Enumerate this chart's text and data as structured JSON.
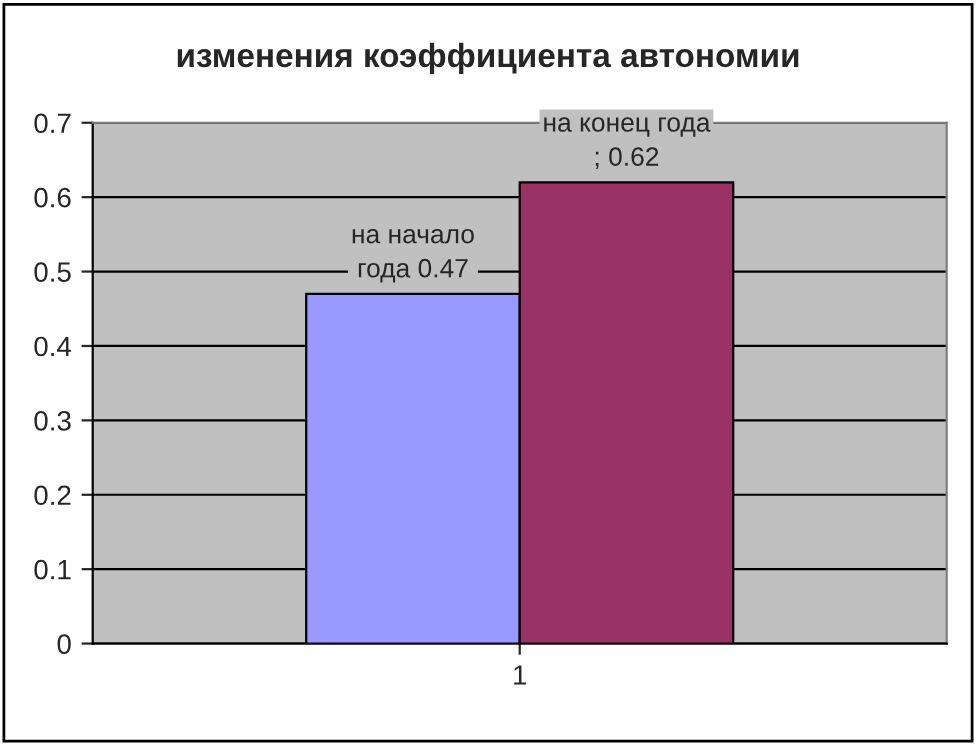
{
  "chart_data": {
    "type": "bar",
    "title": "изменения коэффициента автономии",
    "categories": [
      "1"
    ],
    "series": [
      {
        "color": "#9999ff",
        "values": [
          0.47
        ],
        "value_labels": [
          "на начало\nгода 0.47"
        ]
      },
      {
        "color": "#993366",
        "values": [
          0.62
        ],
        "value_labels": [
          "на конец года\n; 0.62"
        ]
      }
    ],
    "ylim": [
      0,
      0.7
    ],
    "yticks": [
      0,
      0.1,
      0.2,
      0.3,
      0.4,
      0.5,
      0.6,
      0.7
    ],
    "grid": "y",
    "legend": false
  }
}
